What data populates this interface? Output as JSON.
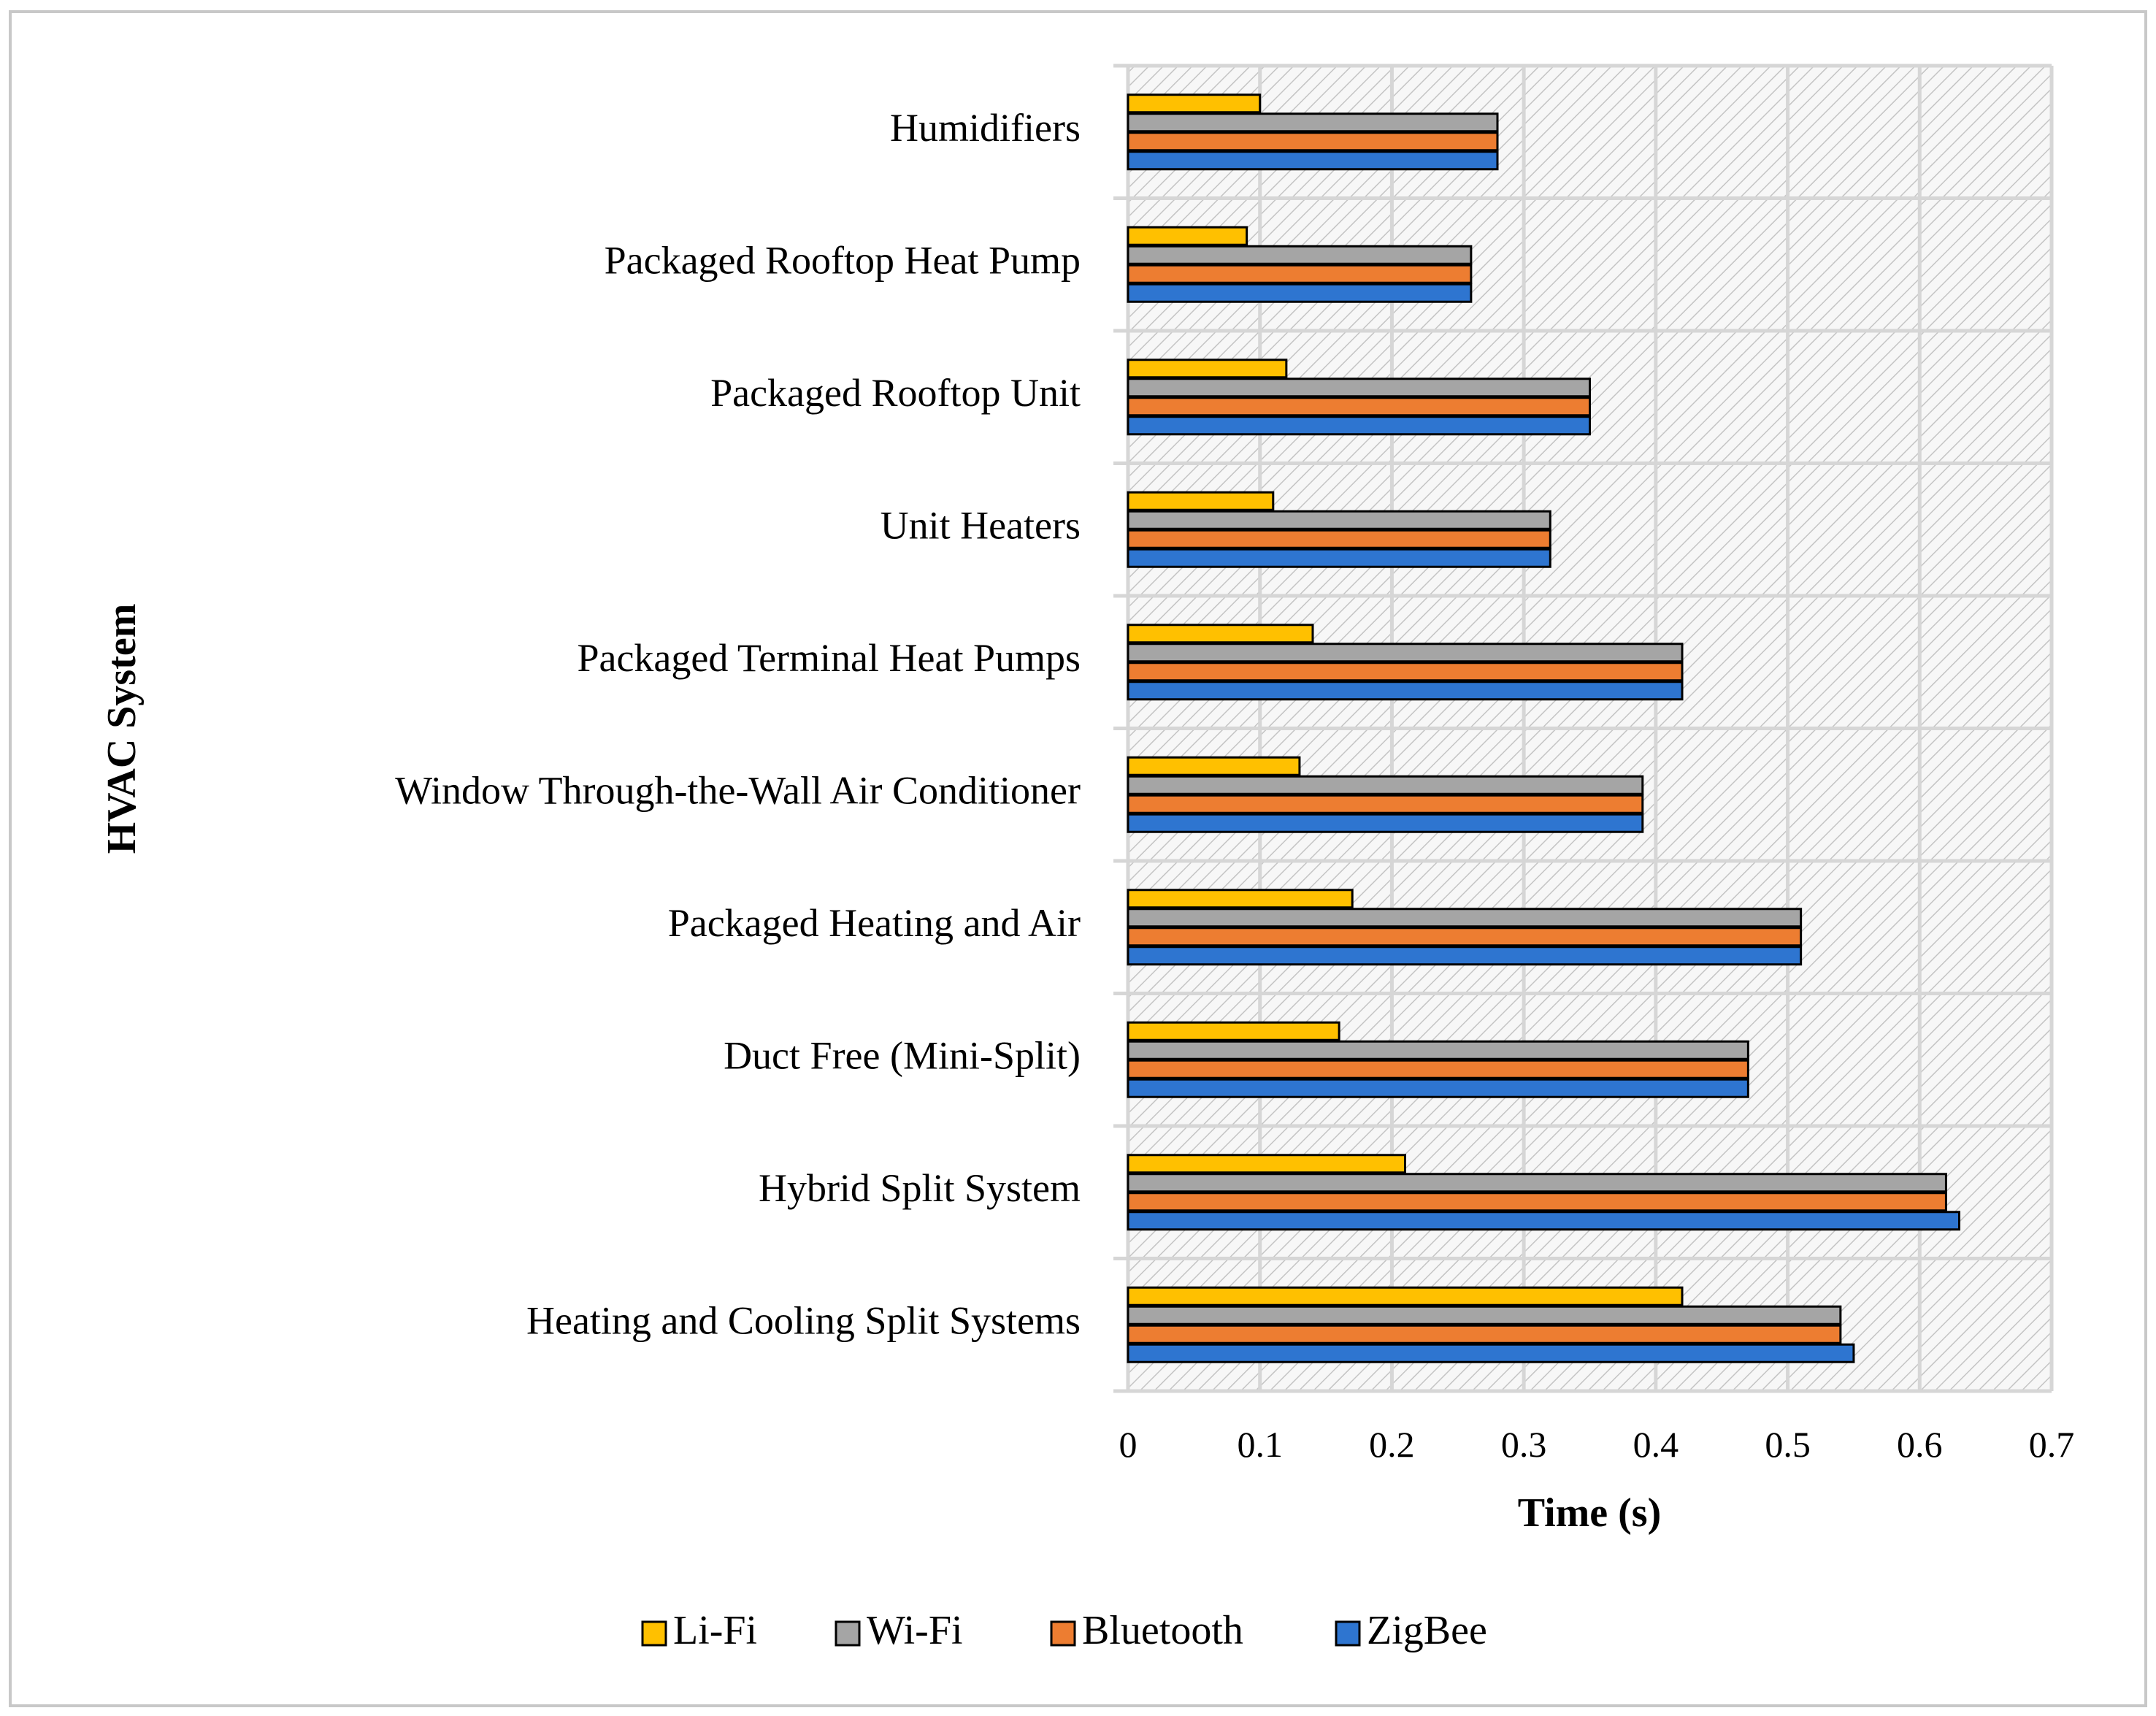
{
  "chart_data": {
    "type": "bar",
    "orientation": "horizontal",
    "title": "",
    "xlabel": "Time (s)",
    "ylabel": "HVAC System",
    "xlim": [
      0,
      0.7
    ],
    "x_ticks": [
      "0",
      "0.1",
      "0.2",
      "0.3",
      "0.4",
      "0.5",
      "0.6",
      "0.7"
    ],
    "grid": true,
    "legend_position": "bottom",
    "categories": [
      "Humidifiers",
      "Packaged Rooftop Heat Pump",
      "Packaged Rooftop Unit",
      "Unit Heaters",
      "Packaged Terminal Heat Pumps",
      "Window Through-the-Wall Air Conditioner",
      "Packaged Heating and Air",
      "Duct Free (Mini-Split)",
      "Hybrid Split System",
      "Heating and Cooling Split Systems"
    ],
    "series": [
      {
        "name": "Li-Fi",
        "color": "#FFC000",
        "values": [
          0.1,
          0.09,
          0.12,
          0.11,
          0.14,
          0.13,
          0.17,
          0.16,
          0.21,
          0.42
        ]
      },
      {
        "name": "Wi-Fi",
        "color": "#A5A5A5",
        "values": [
          0.28,
          0.26,
          0.35,
          0.32,
          0.42,
          0.39,
          0.51,
          0.47,
          0.62,
          0.54
        ]
      },
      {
        "name": "Bluetooth",
        "color": "#ED7D31",
        "values": [
          0.28,
          0.26,
          0.35,
          0.32,
          0.42,
          0.39,
          0.51,
          0.47,
          0.62,
          0.54
        ]
      },
      {
        "name": "ZigBee",
        "color": "#2E75D0",
        "values": [
          0.28,
          0.26,
          0.35,
          0.32,
          0.42,
          0.39,
          0.51,
          0.47,
          0.63,
          0.55
        ]
      }
    ]
  }
}
